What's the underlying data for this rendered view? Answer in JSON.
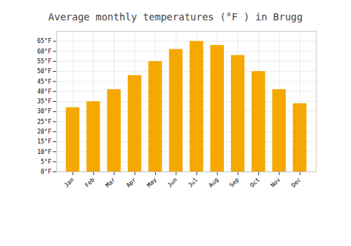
{
  "chart_data": {
    "type": "bar",
    "title": "Average monthly temperatures (°F ) in Brugg",
    "categories": [
      "Jan",
      "Feb",
      "Mar",
      "Apr",
      "May",
      "Jun",
      "Jul",
      "Aug",
      "Sep",
      "Oct",
      "Nov",
      "Dec"
    ],
    "values": [
      32,
      35,
      41,
      48,
      55,
      61,
      65,
      63,
      58,
      50,
      41,
      34
    ],
    "color": "#F5A800",
    "ylim": [
      0,
      70
    ],
    "yticks": [
      {
        "value": 0,
        "label": "0°F"
      },
      {
        "value": 5,
        "label": "5°F"
      },
      {
        "value": 10,
        "label": "10°F"
      },
      {
        "value": 15,
        "label": "15°F"
      },
      {
        "value": 20,
        "label": "20°F"
      },
      {
        "value": 25,
        "label": "25°F"
      },
      {
        "value": 30,
        "label": "30°F"
      },
      {
        "value": 35,
        "label": "35°F"
      },
      {
        "value": 40,
        "label": "40°F"
      },
      {
        "value": 45,
        "label": "45°F"
      },
      {
        "value": 50,
        "label": "50°F"
      },
      {
        "value": 55,
        "label": "55°F"
      },
      {
        "value": 60,
        "label": "60°F"
      },
      {
        "value": 65,
        "label": "65°F"
      }
    ],
    "grid": true
  }
}
